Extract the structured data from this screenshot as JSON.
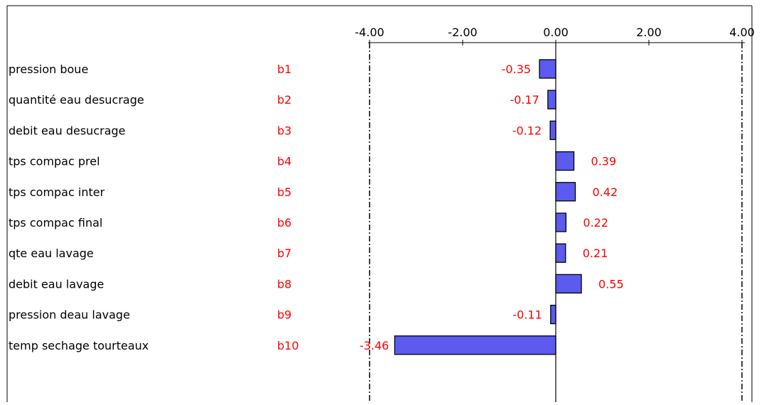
{
  "chart_data": {
    "type": "bar",
    "orientation": "horizontal",
    "title": "",
    "xlabel": "",
    "ylabel": "",
    "xlim": [
      -5.0,
      5.0
    ],
    "x_ticks": [
      -4,
      -2,
      0,
      2,
      4
    ],
    "x_tick_labels": [
      "-4.00",
      "-2.00",
      "0.00",
      "2.00",
      "4.00"
    ],
    "grid": false,
    "legend": "none",
    "categories": [
      "pression boue",
      "quantité eau desucrage",
      "debit eau desucrage",
      "tps compac prel",
      "tps compac inter",
      "tps compac final",
      "qte eau lavage",
      "debit eau lavage",
      "pression deau lavage",
      "temp sechage tourteaux"
    ],
    "codes": [
      "b1",
      "b2",
      "b3",
      "b4",
      "b5",
      "b6",
      "b7",
      "b8",
      "b9",
      "b10"
    ],
    "values": [
      -0.35,
      -0.17,
      -0.12,
      0.39,
      0.42,
      0.22,
      0.21,
      0.55,
      -0.11,
      -3.46
    ],
    "value_labels": [
      "-0.35",
      "-0.17",
      "-0.12",
      "0.39",
      "0.42",
      "0.22",
      "0.21",
      "0.55",
      "-0.11",
      "-3.46"
    ],
    "colors": {
      "bar_fill": "#5b5bef",
      "bar_stroke": "#000000",
      "code_text": "#ff0000",
      "value_text": "#ff0000",
      "label_text": "#000000",
      "axis": "#000000"
    }
  }
}
